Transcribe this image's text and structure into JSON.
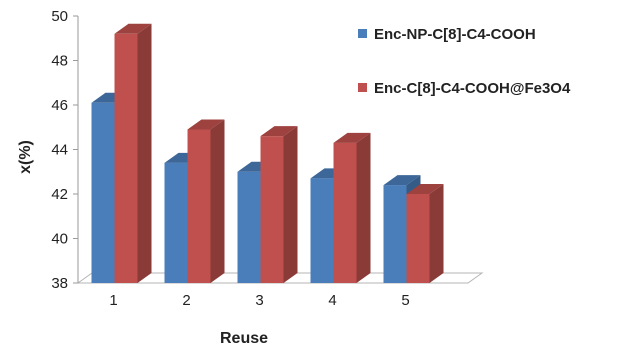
{
  "chart_data": {
    "type": "bar",
    "categories": [
      "1",
      "2",
      "3",
      "4",
      "5"
    ],
    "series": [
      {
        "name": "Enc-NP-C[8]-C4-COOH",
        "values": [
          46.1,
          43.4,
          43.0,
          42.7,
          42.4
        ],
        "color": "#4A7EBB"
      },
      {
        "name": "Enc-C[8]-C4-COOH@Fe3O4",
        "values": [
          49.2,
          44.9,
          44.6,
          44.3,
          42.0
        ],
        "color": "#C0504D"
      }
    ],
    "title": "",
    "xlabel": "Reuse",
    "ylabel": "x(%)",
    "ylim": [
      38,
      50
    ],
    "yticks": [
      "38",
      "40",
      "42",
      "44",
      "46",
      "48",
      "50"
    ],
    "grid": false,
    "legend_position": "right",
    "style": "3d-clustered-column"
  }
}
